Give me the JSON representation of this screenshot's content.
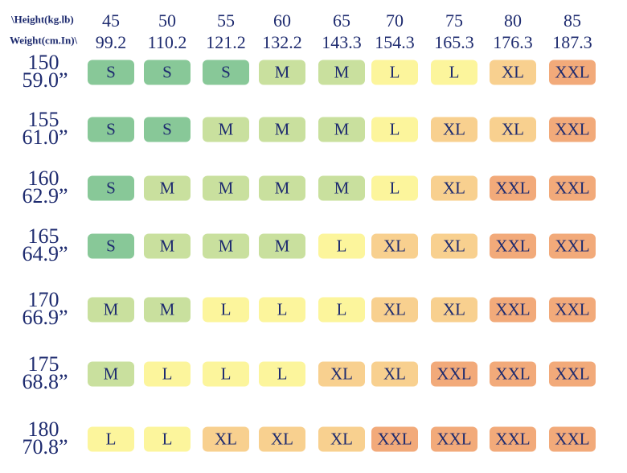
{
  "header": {
    "label_top": "\\Height(kg.lb)",
    "label_bottom": "Weight(cm.In)\\"
  },
  "columns": [
    {
      "top": "45",
      "bottom": "99.2"
    },
    {
      "top": "50",
      "bottom": "110.2"
    },
    {
      "top": "55",
      "bottom": "121.2"
    },
    {
      "top": "60",
      "bottom": "132.2"
    },
    {
      "top": "65",
      "bottom": "143.3"
    },
    {
      "top": "70",
      "bottom": "154.3"
    },
    {
      "top": "75",
      "bottom": "165.3"
    },
    {
      "top": "80",
      "bottom": "176.3"
    },
    {
      "top": "85",
      "bottom": "187.3"
    }
  ],
  "rows": [
    {
      "top": "150",
      "bottom": "59.0”",
      "sizes": [
        "S",
        "S",
        "S",
        "M",
        "M",
        "L",
        "L",
        "XL",
        "XXL"
      ]
    },
    {
      "top": "155",
      "bottom": "61.0”",
      "sizes": [
        "S",
        "S",
        "M",
        "M",
        "M",
        "L",
        "XL",
        "XL",
        "XXL"
      ]
    },
    {
      "top": "160",
      "bottom": "62.9”",
      "sizes": [
        "S",
        "M",
        "M",
        "M",
        "M",
        "L",
        "XL",
        "XXL",
        "XXL"
      ]
    },
    {
      "top": "165",
      "bottom": "64.9”",
      "sizes": [
        "S",
        "M",
        "M",
        "M",
        "L",
        "XL",
        "XL",
        "XXL",
        "XXL"
      ]
    },
    {
      "top": "170",
      "bottom": "66.9”",
      "sizes": [
        "M",
        "M",
        "L",
        "L",
        "L",
        "XL",
        "XL",
        "XXL",
        "XXL"
      ]
    },
    {
      "top": "175",
      "bottom": "68.8”",
      "sizes": [
        "M",
        "L",
        "L",
        "L",
        "XL",
        "XL",
        "XXL",
        "XXL",
        "XXL"
      ]
    },
    {
      "top": "180",
      "bottom": "70.8”",
      "sizes": [
        "L",
        "L",
        "XL",
        "XL",
        "XL",
        "XXL",
        "XXL",
        "XXL",
        "XXL"
      ]
    }
  ],
  "colors": {
    "S": "#88c898",
    "M": "#c9e09e",
    "L": "#fcf59c",
    "XL": "#f8d08f",
    "XXL": "#f2aa7a"
  }
}
